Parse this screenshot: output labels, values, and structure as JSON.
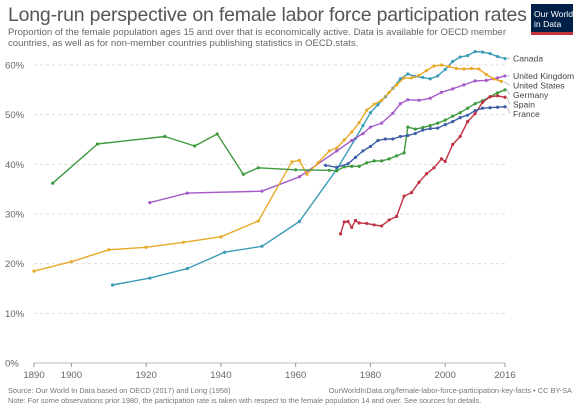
{
  "header": {
    "title": "Long-run perspective on female labor force participation rates",
    "subtitle": "Proportion of the female population ages 15 and over that is economically active. Data is available for OECD member countries, as well as for non-member countries publishing statistics in OECD.stats.",
    "logo_line1": "Our World",
    "logo_line2": "in Data"
  },
  "footer": {
    "source": "Source: Our World In Data based on OECD (2017) and Long (1958)",
    "note": "Note: For some observations prior 1980, the participation rate is taken with respect to the female population 14 and over. See sources for details.",
    "url": "OurWorldInData.org/female-labor-force-participation-key-facts • CC BY-SA"
  },
  "colors": {
    "logo_bg": "#002147",
    "logo_accent": "#c4323a"
  },
  "chart_data": {
    "type": "line",
    "xlim": [
      1890,
      2016
    ],
    "ylim": [
      0,
      60
    ],
    "x_ticks": [
      {
        "value": 1890,
        "label": "1890"
      },
      {
        "value": 1900,
        "label": "1900"
      },
      {
        "value": 1920,
        "label": "1920"
      },
      {
        "value": 1940,
        "label": "1940"
      },
      {
        "value": 1960,
        "label": "1960"
      },
      {
        "value": 1980,
        "label": "1980"
      },
      {
        "value": 2000,
        "label": "2000"
      },
      {
        "value": 2016,
        "label": "2016"
      }
    ],
    "y_ticks": [
      {
        "value": 0,
        "label": "0%"
      },
      {
        "value": 10,
        "label": "10%"
      },
      {
        "value": 20,
        "label": "20%"
      },
      {
        "value": 30,
        "label": "30%"
      },
      {
        "value": 40,
        "label": "40%"
      },
      {
        "value": 50,
        "label": "50%"
      },
      {
        "value": 60,
        "label": "60%"
      }
    ],
    "grid": "horizontal-dashed",
    "legend": "right-end-labels",
    "series": [
      {
        "name": "Canada",
        "color": "#3a9bb8",
        "points": [
          [
            1911,
            15.7
          ],
          [
            1921,
            17.1
          ],
          [
            1931,
            19
          ],
          [
            1941,
            22.3
          ],
          [
            1951,
            23.5
          ],
          [
            1961,
            28.5
          ],
          [
            1971,
            39
          ],
          [
            1976,
            45.2
          ],
          [
            1978,
            47.8
          ],
          [
            1980,
            50.4
          ],
          [
            1982,
            52
          ],
          [
            1984,
            53.6
          ],
          [
            1986,
            55.3
          ],
          [
            1988,
            57.2
          ],
          [
            1990,
            58.2
          ],
          [
            1992,
            57.7
          ],
          [
            1994,
            57.5
          ],
          [
            1996,
            57.2
          ],
          [
            1998,
            57.8
          ],
          [
            2000,
            59.1
          ],
          [
            2002,
            60.7
          ],
          [
            2004,
            61.6
          ],
          [
            2006,
            61.9
          ],
          [
            2008,
            62.7
          ],
          [
            2010,
            62.6
          ],
          [
            2012,
            62.3
          ],
          [
            2014,
            61.7
          ],
          [
            2016,
            61.3
          ]
        ]
      },
      {
        "name": "United Kingdom",
        "color": "#a45ac8",
        "points": [
          [
            1921,
            32.3
          ],
          [
            1931,
            34.2
          ],
          [
            1951,
            34.6
          ],
          [
            1961,
            37.5
          ],
          [
            1971,
            42.7
          ],
          [
            1975,
            44.8
          ],
          [
            1978,
            46.2
          ],
          [
            1980,
            47.5
          ],
          [
            1983,
            48.3
          ],
          [
            1986,
            50.3
          ],
          [
            1988,
            52.2
          ],
          [
            1990,
            53
          ],
          [
            1993,
            52.9
          ],
          [
            1996,
            53.3
          ],
          [
            1999,
            54.5
          ],
          [
            2002,
            55.2
          ],
          [
            2005,
            56
          ],
          [
            2008,
            56.8
          ],
          [
            2011,
            56.9
          ],
          [
            2014,
            57.4
          ],
          [
            2016,
            57.8
          ]
        ]
      },
      {
        "name": "United States",
        "color": "#e9a92a",
        "points": [
          [
            1890,
            18.5
          ],
          [
            1900,
            20.4
          ],
          [
            1910,
            22.8
          ],
          [
            1920,
            23.3
          ],
          [
            1930,
            24.3
          ],
          [
            1940,
            25.4
          ],
          [
            1950,
            28.6
          ],
          [
            1959,
            40.5
          ],
          [
            1961,
            40.8
          ],
          [
            1963,
            38
          ],
          [
            1966,
            40.3
          ],
          [
            1969,
            42.7
          ],
          [
            1971,
            43.3
          ],
          [
            1973,
            44.9
          ],
          [
            1975,
            46.5
          ],
          [
            1977,
            48.4
          ],
          [
            1979,
            50.9
          ],
          [
            1981,
            52.1
          ],
          [
            1983,
            52.9
          ],
          [
            1985,
            54.5
          ],
          [
            1987,
            56
          ],
          [
            1989,
            57.4
          ],
          [
            1991,
            57.4
          ],
          [
            1993,
            57.9
          ],
          [
            1995,
            58.9
          ],
          [
            1997,
            59.8
          ],
          [
            1999,
            60
          ],
          [
            2001,
            59.7
          ],
          [
            2003,
            59.3
          ],
          [
            2005,
            59.2
          ],
          [
            2007,
            59.3
          ],
          [
            2009,
            59.2
          ],
          [
            2011,
            58.1
          ],
          [
            2013,
            57.2
          ],
          [
            2015,
            56.7
          ]
        ]
      },
      {
        "name": "Germany",
        "color": "#3e9a3e",
        "points": [
          [
            1895,
            36.2
          ],
          [
            1907,
            44.1
          ],
          [
            1925,
            45.6
          ],
          [
            1933,
            43.7
          ],
          [
            1939,
            46.1
          ],
          [
            1946,
            38
          ],
          [
            1950,
            39.3
          ],
          [
            1960,
            38.9
          ],
          [
            1969,
            38.8
          ],
          [
            1971,
            38.7
          ],
          [
            1973,
            39.5
          ],
          [
            1975,
            39.6
          ],
          [
            1977,
            39.6
          ],
          [
            1979,
            40.3
          ],
          [
            1981,
            40.7
          ],
          [
            1983,
            40.7
          ],
          [
            1985,
            41.1
          ],
          [
            1987,
            41.7
          ],
          [
            1989,
            42.3
          ],
          [
            1990,
            47.5
          ],
          [
            1992,
            47.1
          ],
          [
            1994,
            47.4
          ],
          [
            1996,
            47.8
          ],
          [
            1998,
            48.3
          ],
          [
            2000,
            48.9
          ],
          [
            2002,
            49.7
          ],
          [
            2004,
            50.4
          ],
          [
            2006,
            51.3
          ],
          [
            2008,
            52.2
          ],
          [
            2010,
            52.8
          ],
          [
            2012,
            53.6
          ],
          [
            2014,
            54.4
          ],
          [
            2016,
            55
          ]
        ]
      },
      {
        "name": "Spain",
        "color": "#c13043",
        "points": [
          [
            1972,
            26
          ],
          [
            1973,
            28.4
          ],
          [
            1974,
            28.5
          ],
          [
            1975,
            27.3
          ],
          [
            1976,
            28.7
          ],
          [
            1977,
            28.2
          ],
          [
            1979,
            28.1
          ],
          [
            1981,
            27.8
          ],
          [
            1983,
            27.6
          ],
          [
            1985,
            28.8
          ],
          [
            1987,
            29.5
          ],
          [
            1989,
            33.6
          ],
          [
            1991,
            34.3
          ],
          [
            1993,
            36.4
          ],
          [
            1995,
            38.1
          ],
          [
            1997,
            39.3
          ],
          [
            1999,
            41.1
          ],
          [
            2000,
            40.6
          ],
          [
            2002,
            44
          ],
          [
            2004,
            45.6
          ],
          [
            2006,
            48.6
          ],
          [
            2008,
            50.2
          ],
          [
            2010,
            52.5
          ],
          [
            2012,
            53.6
          ],
          [
            2014,
            53.8
          ],
          [
            2016,
            53.5
          ]
        ]
      },
      {
        "name": "France",
        "color": "#3d5da7",
        "points": [
          [
            1968,
            39.8
          ],
          [
            1971,
            39.4
          ],
          [
            1974,
            40.1
          ],
          [
            1976,
            41.4
          ],
          [
            1978,
            42.7
          ],
          [
            1980,
            43.6
          ],
          [
            1982,
            44.8
          ],
          [
            1984,
            45.1
          ],
          [
            1986,
            45.1
          ],
          [
            1988,
            45.6
          ],
          [
            1990,
            45.8
          ],
          [
            1992,
            46.2
          ],
          [
            1994,
            46.9
          ],
          [
            1996,
            47.2
          ],
          [
            1998,
            47.3
          ],
          [
            2000,
            48
          ],
          [
            2002,
            48.6
          ],
          [
            2004,
            49.4
          ],
          [
            2006,
            49.9
          ],
          [
            2008,
            50.8
          ],
          [
            2010,
            51.3
          ],
          [
            2012,
            51.4
          ],
          [
            2014,
            51.5
          ],
          [
            2016,
            51.6
          ]
        ]
      }
    ]
  }
}
